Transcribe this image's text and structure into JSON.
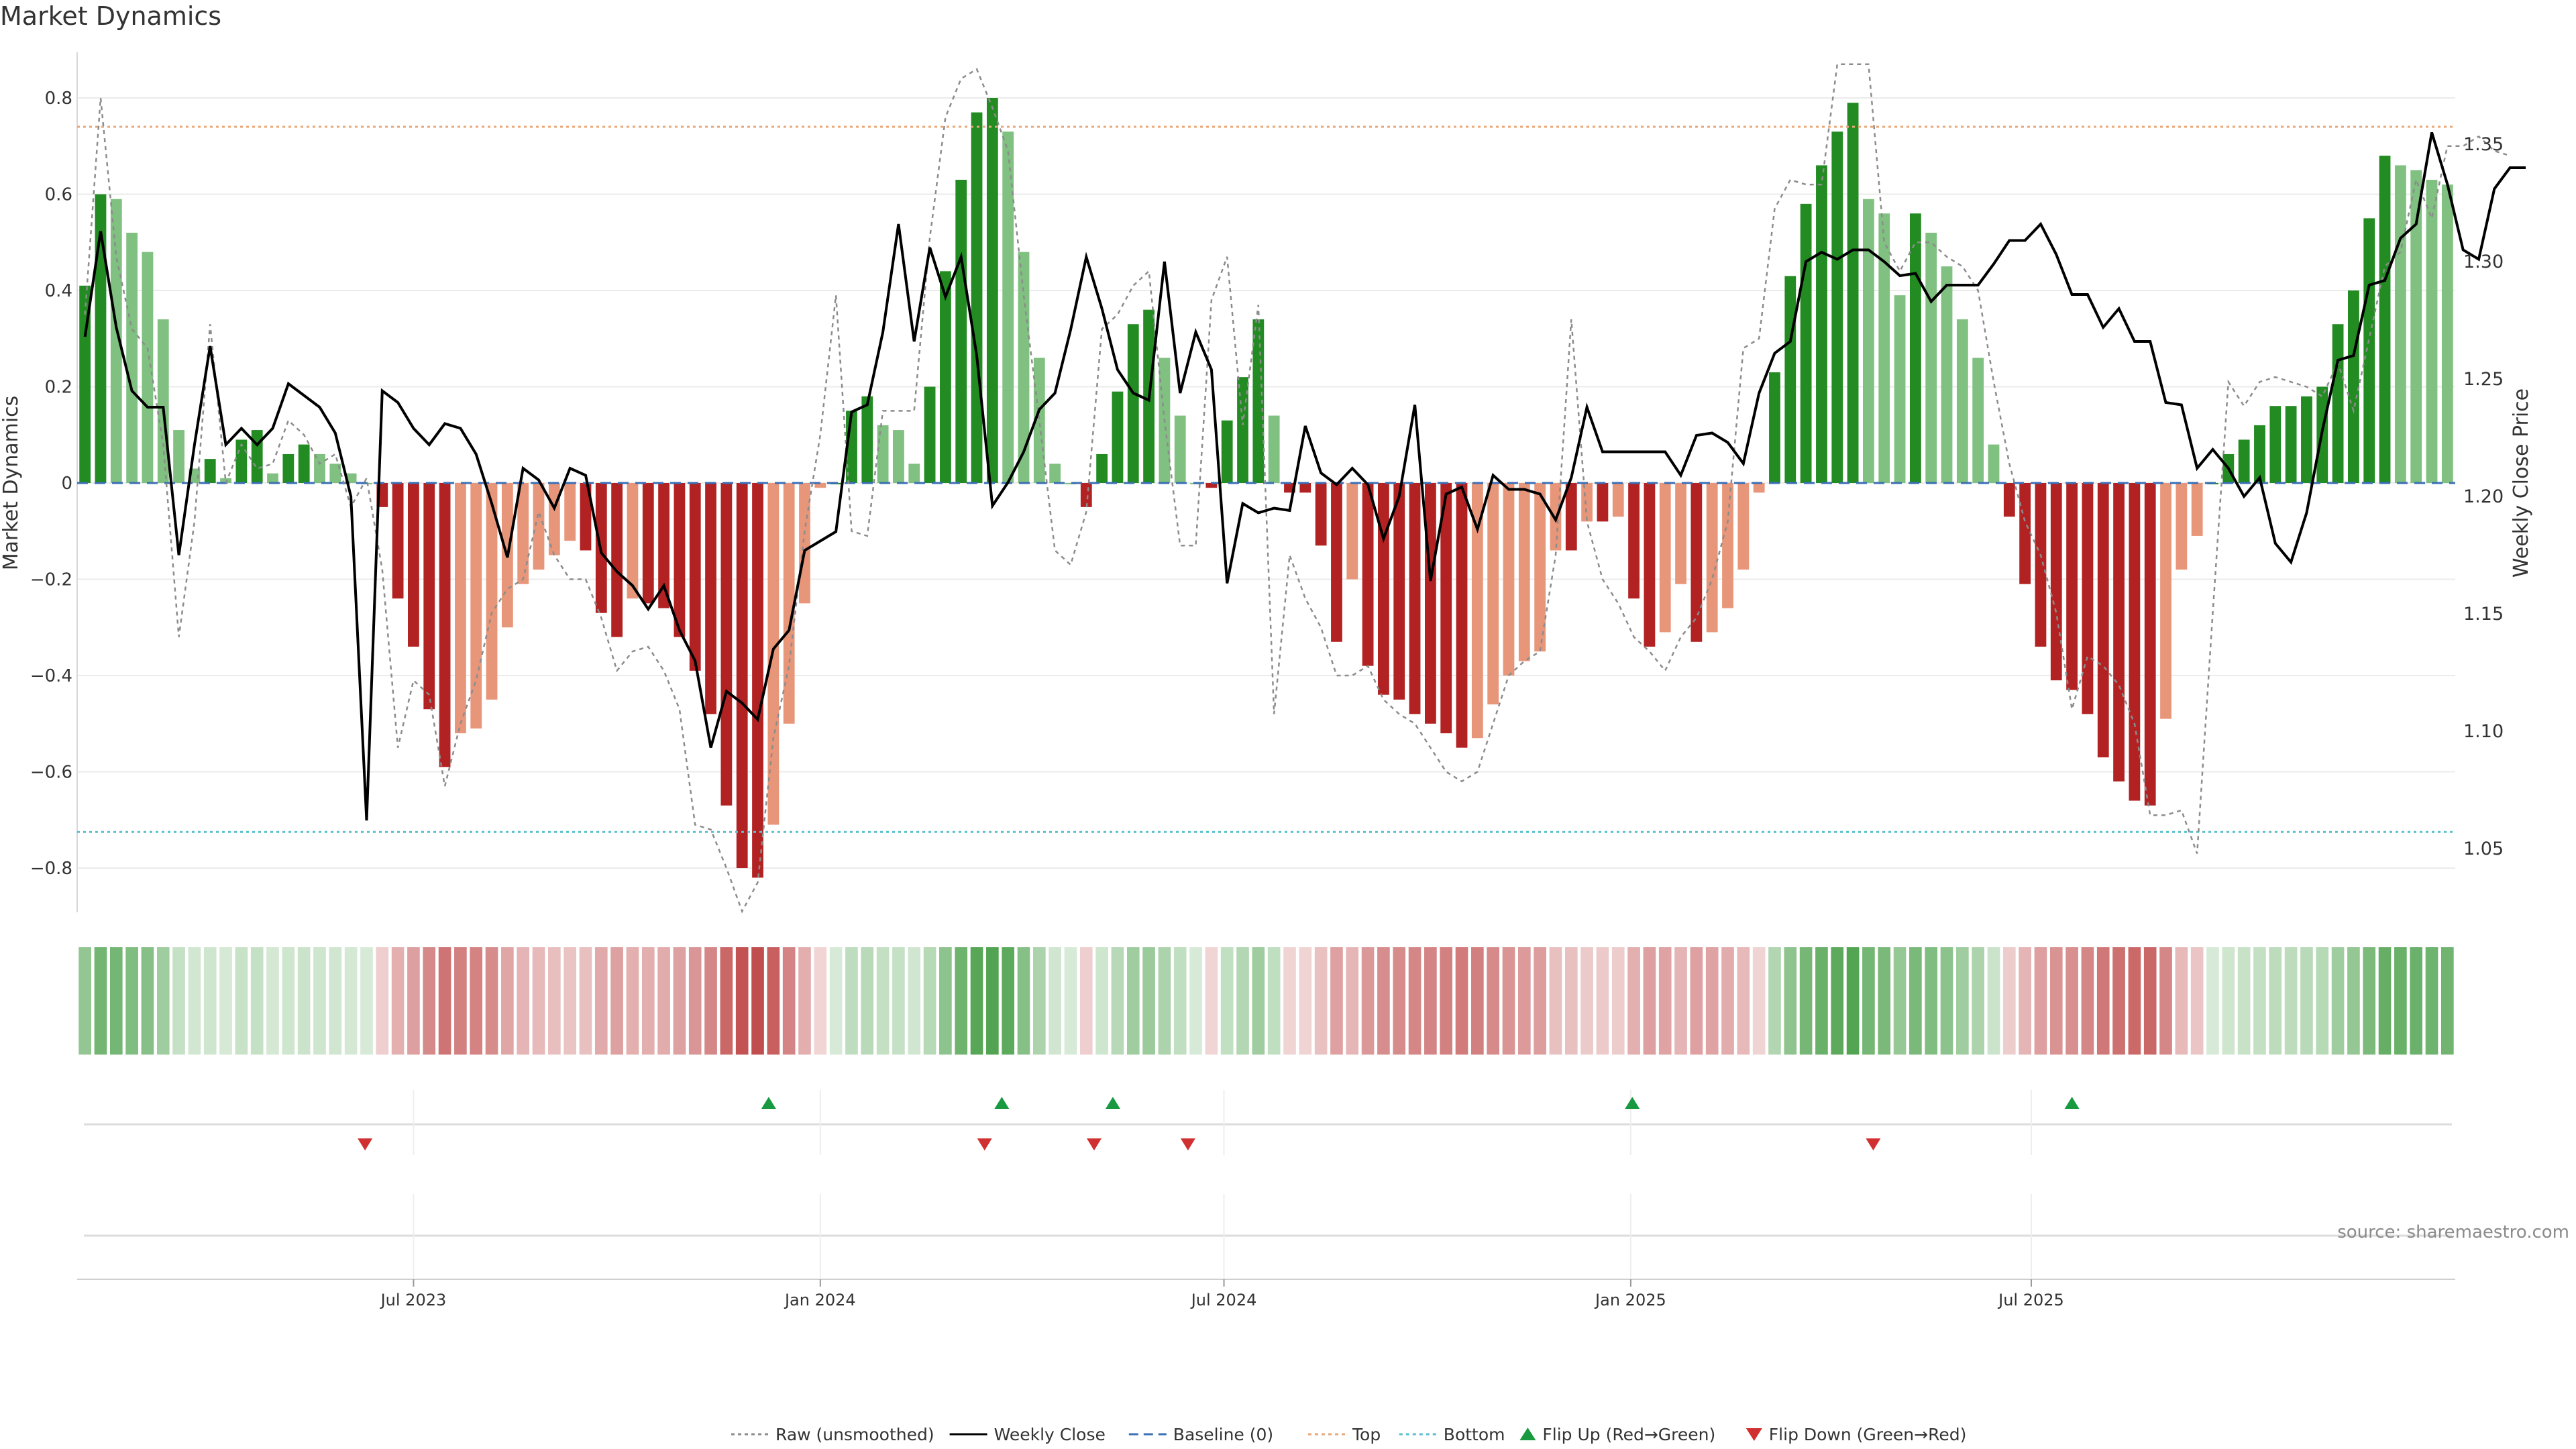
{
  "title": "Market Dynamics",
  "source": "source: sharemaestro.com",
  "chart_data": {
    "type": "bar",
    "title": "Market Dynamics",
    "ylabel": "Market Dynamics",
    "y2label": "Weekly Close Price",
    "ylim": [
      -0.9,
      0.9
    ],
    "y2lim": [
      1.025,
      1.385
    ],
    "yticks": [
      "0.8",
      "0.6",
      "0.4",
      "0.2",
      "0",
      "−0.2",
      "−0.4",
      "−0.6",
      "−0.8"
    ],
    "y2ticks": [
      "1.35",
      "1.30",
      "1.25",
      "1.20",
      "1.15",
      "1.10",
      "1.05"
    ],
    "xticks": [
      "Jul 2023",
      "Jan 2024",
      "Jul 2024",
      "Jan 2025",
      "Jul 2025"
    ],
    "xtick_weeks": [
      21.5,
      47.5,
      73.3,
      99.3,
      124.9
    ],
    "top_line": 0.74,
    "bottom_line": -0.725,
    "bars": [
      0.41,
      0.6,
      0.59,
      0.52,
      0.48,
      0.34,
      0.11,
      0.03,
      0.05,
      0.01,
      0.09,
      0.11,
      0.02,
      0.06,
      0.08,
      0.06,
      0.04,
      0.02,
      0.0,
      -0.05,
      -0.24,
      -0.34,
      -0.47,
      -0.59,
      -0.52,
      -0.51,
      -0.45,
      -0.3,
      -0.21,
      -0.18,
      -0.15,
      -0.12,
      -0.14,
      -0.27,
      -0.32,
      -0.24,
      -0.25,
      -0.26,
      -0.32,
      -0.39,
      -0.48,
      -0.67,
      -0.8,
      -0.82,
      -0.71,
      -0.5,
      -0.25,
      -0.01,
      0.0,
      0.15,
      0.18,
      0.12,
      0.11,
      0.04,
      0.2,
      0.44,
      0.63,
      0.77,
      0.8,
      0.73,
      0.48,
      0.26,
      0.04,
      0.0,
      -0.05,
      0.06,
      0.19,
      0.33,
      0.36,
      0.26,
      0.14,
      0.0,
      -0.01,
      0.13,
      0.22,
      0.34,
      0.14,
      -0.02,
      -0.02,
      -0.13,
      -0.33,
      -0.2,
      -0.38,
      -0.44,
      -0.45,
      -0.48,
      -0.5,
      -0.52,
      -0.55,
      -0.53,
      -0.46,
      -0.4,
      -0.37,
      -0.35,
      -0.14,
      -0.14,
      -0.08,
      -0.08,
      -0.07,
      -0.24,
      -0.34,
      -0.31,
      -0.21,
      -0.33,
      -0.31,
      -0.26,
      -0.18,
      -0.02,
      0.23,
      0.43,
      0.58,
      0.66,
      0.73,
      0.79,
      0.59,
      0.56,
      0.39,
      0.56,
      0.52,
      0.45,
      0.34,
      0.26,
      0.08,
      -0.07,
      -0.21,
      -0.34,
      -0.41,
      -0.43,
      -0.48,
      -0.57,
      -0.62,
      -0.66,
      -0.67,
      -0.49,
      -0.18,
      -0.11,
      0.0,
      0.06,
      0.09,
      0.12,
      0.16,
      0.16,
      0.18,
      0.2,
      0.33,
      0.4,
      0.55,
      0.68,
      0.66,
      0.65,
      0.63,
      0.62
    ],
    "raw": [
      0.35,
      0.8,
      0.47,
      0.32,
      0.28,
      0.08,
      -0.32,
      -0.08,
      0.33,
      0.0,
      0.08,
      0.03,
      0.04,
      0.13,
      0.1,
      0.04,
      0.06,
      -0.05,
      0.01,
      -0.18,
      -0.55,
      -0.41,
      -0.44,
      -0.63,
      -0.5,
      -0.41,
      -0.27,
      -0.22,
      -0.2,
      -0.06,
      -0.15,
      -0.2,
      -0.2,
      -0.28,
      -0.39,
      -0.35,
      -0.34,
      -0.39,
      -0.47,
      -0.71,
      -0.72,
      -0.8,
      -0.89,
      -0.83,
      -0.53,
      -0.38,
      -0.1,
      0.1,
      0.39,
      -0.1,
      -0.11,
      0.15,
      0.15,
      0.15,
      0.51,
      0.76,
      0.84,
      0.86,
      0.78,
      0.69,
      0.39,
      0.13,
      -0.14,
      -0.17,
      -0.06,
      0.32,
      0.35,
      0.41,
      0.44,
      0.13,
      -0.13,
      -0.13,
      0.38,
      0.47,
      0.12,
      0.37,
      -0.48,
      -0.15,
      -0.24,
      -0.3,
      -0.4,
      -0.4,
      -0.38,
      -0.45,
      -0.48,
      -0.5,
      -0.55,
      -0.6,
      -0.62,
      -0.6,
      -0.5,
      -0.4,
      -0.37,
      -0.35,
      -0.15,
      0.34,
      -0.08,
      -0.2,
      -0.25,
      -0.32,
      -0.35,
      -0.39,
      -0.32,
      -0.28,
      -0.2,
      -0.08,
      0.28,
      0.3,
      0.57,
      0.63,
      0.62,
      0.62,
      0.87,
      0.87,
      0.87,
      0.5,
      0.44,
      0.5,
      0.5,
      0.47,
      0.45,
      0.4,
      0.21,
      0.04,
      -0.08,
      -0.15,
      -0.27,
      -0.47,
      -0.36,
      -0.38,
      -0.42,
      -0.5,
      -0.69,
      -0.69,
      -0.68,
      -0.77,
      -0.27,
      0.21,
      0.16,
      0.21,
      0.22,
      0.21,
      0.2,
      0.18,
      0.25,
      0.15,
      0.3,
      0.45,
      0.48,
      0.63,
      0.55,
      0.7,
      0.7,
      0.72,
      0.69,
      0.68
    ],
    "close": [
      1.268,
      1.313,
      1.272,
      1.245,
      1.238,
      1.238,
      1.175,
      1.222,
      1.264,
      1.222,
      1.229,
      1.222,
      1.229,
      1.248,
      1.243,
      1.238,
      1.227,
      1.2,
      1.062,
      1.245,
      1.24,
      1.229,
      1.222,
      1.231,
      1.229,
      1.218,
      1.197,
      1.174,
      1.212,
      1.207,
      1.195,
      1.212,
      1.209,
      1.176,
      1.168,
      1.162,
      1.152,
      1.162,
      1.143,
      1.13,
      1.093,
      1.117,
      1.112,
      1.105,
      1.135,
      1.143,
      1.177,
      1.181,
      1.185,
      1.236,
      1.239,
      1.27,
      1.316,
      1.266,
      1.306,
      1.285,
      1.302,
      1.26,
      1.196,
      1.206,
      1.219,
      1.237,
      1.244,
      1.271,
      1.302,
      1.28,
      1.254,
      1.244,
      1.241,
      1.3,
      1.244,
      1.27,
      1.254,
      1.163,
      1.197,
      1.193,
      1.195,
      1.194,
      1.23,
      1.21,
      1.205,
      1.212,
      1.205,
      1.182,
      1.2,
      1.239,
      1.164,
      1.201,
      1.204,
      1.186,
      1.209,
      1.203,
      1.203,
      1.201,
      1.19,
      1.208,
      1.238,
      1.219,
      1.219,
      1.219,
      1.219,
      1.219,
      1.209,
      1.226,
      1.227,
      1.223,
      1.214,
      1.244,
      1.261,
      1.266,
      1.3,
      1.304,
      1.301,
      1.305,
      1.305,
      1.3,
      1.294,
      1.295,
      1.283,
      1.29,
      1.29,
      1.29,
      1.299,
      1.309,
      1.309,
      1.316,
      1.303,
      1.286,
      1.286,
      1.272,
      1.28,
      1.266,
      1.266,
      1.24,
      1.239,
      1.212,
      1.22,
      1.212,
      1.2,
      1.208,
      1.18,
      1.172,
      1.193,
      1.228,
      1.258,
      1.26,
      1.29,
      1.292,
      1.31,
      1.316,
      1.355,
      1.333,
      1.305,
      1.301,
      1.331,
      1.34,
      1.34
    ],
    "flip_up_weeks": [
      44.2,
      59.1,
      66.2,
      99.4,
      127.5
    ],
    "flip_down_weeks": [
      18.4,
      58.0,
      65.0,
      71.0,
      114.8
    ],
    "legend": [
      {
        "label": "Raw (unsmoothed)",
        "style": "dotted",
        "color": "#8c8c8c"
      },
      {
        "label": "Weekly Close",
        "style": "solid",
        "color": "#000000"
      },
      {
        "label": "Baseline (0)",
        "style": "dashed",
        "color": "#3b6fb6"
      },
      {
        "label": "Top",
        "style": "dotted",
        "color": "#e8a878"
      },
      {
        "label": "Bottom",
        "style": "dotted",
        "color": "#5bc0d0"
      },
      {
        "label": "Flip Up (Red→Green)",
        "style": "triangle-up",
        "color": "#1a9a40"
      },
      {
        "label": "Flip Down (Green→Red)",
        "style": "triangle-down",
        "color": "#d03030"
      }
    ],
    "legend_placement": "bottom-center"
  },
  "colors": {
    "strong_green": "#228b22",
    "light_green": "#80c080",
    "strong_red": "#b22222",
    "light_red": "#e8967a",
    "top_line": "#e8a878",
    "bottom_line": "#5bc0d0",
    "baseline": "#3b6fb6"
  }
}
